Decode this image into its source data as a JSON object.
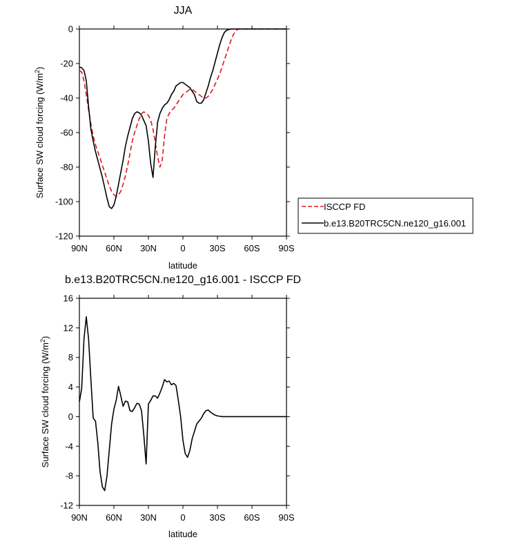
{
  "chart_data": [
    {
      "type": "line",
      "title": "JJA",
      "xlabel": "latitude",
      "ylabel": "Surface SW cloud forcing (W/m",
      "ylabel_sup": "2",
      "ylabel_end": ")",
      "xlim": [
        90,
        -90
      ],
      "ylim": [
        -120,
        0
      ],
      "xticks": [
        90,
        60,
        30,
        0,
        -30,
        -60,
        -90
      ],
      "xtick_labels": [
        "90N",
        "60N",
        "30N",
        "0",
        "30S",
        "60S",
        "90S"
      ],
      "yticks": [
        0,
        -20,
        -40,
        -60,
        -80,
        -100,
        -120
      ],
      "ytick_labels": [
        "0",
        "-20",
        "-40",
        "-60",
        "-80",
        "-100",
        "-120"
      ],
      "grid": false,
      "legend": "right",
      "series": [
        {
          "name": "ISCCP FD",
          "color": "#e0141e",
          "style": "dashed",
          "x": [
            90,
            88,
            86,
            84,
            82,
            80,
            78,
            76,
            74,
            72,
            70,
            68,
            66,
            64,
            62,
            60,
            58,
            56,
            54,
            52,
            50,
            48,
            46,
            44,
            42,
            40,
            38,
            36,
            34,
            32,
            30,
            28,
            26,
            24,
            22,
            20,
            18,
            16,
            14,
            12,
            10,
            8,
            6,
            4,
            2,
            0,
            -2,
            -4,
            -6,
            -8,
            -10,
            -12,
            -14,
            -16,
            -18,
            -20,
            -22,
            -24,
            -26,
            -28,
            -30,
            -32,
            -34,
            -36,
            -38,
            -40,
            -42,
            -44,
            -46,
            -48,
            -50,
            -52,
            -54,
            -56,
            -58,
            -60,
            -62,
            -64,
            -66,
            -68,
            -70,
            -72,
            -74,
            -76,
            -78,
            -80,
            -82,
            -84,
            -86,
            -88,
            -90
          ],
          "values": [
            -24,
            -25,
            -30,
            -38,
            -47,
            -55,
            -62,
            -67,
            -71,
            -75,
            -79,
            -83,
            -87,
            -91,
            -94,
            -96,
            -97,
            -96,
            -94,
            -90,
            -85,
            -79,
            -72,
            -65,
            -60,
            -56,
            -52,
            -49,
            -48,
            -49,
            -50,
            -53,
            -58,
            -66,
            -74,
            -80,
            -76,
            -62,
            -52,
            -49,
            -47,
            -46,
            -44,
            -42,
            -40,
            -38,
            -37,
            -36,
            -35,
            -35,
            -36,
            -37,
            -38,
            -39,
            -40,
            -40,
            -39,
            -37,
            -35,
            -32,
            -29,
            -26,
            -22,
            -18,
            -14,
            -10,
            -6,
            -3,
            -1,
            0,
            0,
            0,
            0,
            0,
            0,
            0,
            0,
            0,
            0,
            0,
            0,
            0,
            0,
            0,
            0,
            0,
            0,
            0,
            0,
            0,
            0
          ]
        },
        {
          "name": "b.e13.B20TRC5CN.ne120_g16.001",
          "color": "#000000",
          "style": "solid",
          "x": [
            90,
            88,
            86,
            84,
            82,
            80,
            78,
            76,
            74,
            72,
            70,
            68,
            66,
            64,
            62,
            60,
            58,
            56,
            54,
            52,
            50,
            48,
            46,
            44,
            42,
            40,
            38,
            36,
            34,
            32,
            30,
            28,
            26,
            24,
            22,
            20,
            18,
            16,
            14,
            12,
            10,
            8,
            6,
            4,
            2,
            0,
            -2,
            -4,
            -6,
            -8,
            -10,
            -12,
            -14,
            -16,
            -18,
            -20,
            -22,
            -24,
            -26,
            -28,
            -30,
            -32,
            -34,
            -36,
            -38,
            -40,
            -42,
            -44,
            -46,
            -48,
            -50,
            -52,
            -54,
            -56,
            -58,
            -60,
            -62,
            -64,
            -66,
            -68,
            -70,
            -72,
            -74,
            -76,
            -78,
            -80,
            -82,
            -84,
            -86,
            -88,
            -90
          ],
          "values": [
            -22,
            -22.5,
            -24,
            -30,
            -45,
            -58,
            -65,
            -71,
            -76,
            -81,
            -86,
            -92,
            -98,
            -103,
            -104,
            -102,
            -97,
            -90,
            -83,
            -76,
            -68,
            -62,
            -57,
            -52,
            -49,
            -48,
            -48.5,
            -50,
            -53,
            -56,
            -65,
            -78,
            -86,
            -68,
            -54,
            -49,
            -46,
            -44,
            -43,
            -41,
            -38,
            -36,
            -33,
            -32,
            -31,
            -31,
            -32,
            -33,
            -34,
            -36,
            -38,
            -42,
            -43,
            -43,
            -41,
            -37,
            -33,
            -28,
            -24,
            -19,
            -14,
            -9,
            -5,
            -2,
            -0.7,
            -0.3,
            0,
            0,
            0,
            0,
            0,
            0,
            0,
            0,
            0,
            0,
            0,
            0,
            0,
            0,
            0,
            0,
            0,
            0,
            0,
            0,
            0,
            0,
            0,
            0,
            0
          ]
        }
      ]
    },
    {
      "type": "line",
      "title": "b.e13.B20TRC5CN.ne120_g16.001 - ISCCP FD",
      "xlabel": "latitude",
      "ylabel": "Surface SW cloud forcing (W/m",
      "ylabel_sup": "2",
      "ylabel_end": ")",
      "xlim": [
        90,
        -90
      ],
      "ylim": [
        -12,
        16
      ],
      "xticks": [
        90,
        60,
        30,
        0,
        -30,
        -60,
        -90
      ],
      "xtick_labels": [
        "90N",
        "60N",
        "30N",
        "0",
        "30S",
        "60S",
        "90S"
      ],
      "yticks": [
        16,
        12,
        8,
        4,
        0,
        -4,
        -8,
        -12
      ],
      "ytick_labels": [
        "16",
        "12",
        "8",
        "4",
        "0",
        "-4",
        "-8",
        "-12"
      ],
      "grid": false,
      "series": [
        {
          "color": "#000000",
          "style": "solid",
          "x": [
            90,
            88,
            86,
            84,
            82,
            80,
            78,
            76,
            74,
            72,
            70,
            68,
            66,
            64,
            62,
            60,
            58,
            56,
            54,
            52,
            50,
            48,
            46,
            44,
            42,
            40,
            38,
            36,
            34,
            32,
            30,
            28,
            26,
            24,
            22,
            20,
            18,
            16,
            14,
            12,
            10,
            8,
            6,
            4,
            2,
            0,
            -2,
            -4,
            -6,
            -8,
            -10,
            -12,
            -14,
            -16,
            -18,
            -20,
            -22,
            -24,
            -26,
            -28,
            -30,
            -32,
            -34,
            -36,
            -38,
            -40,
            -42,
            -44,
            -46,
            -48,
            -50,
            -52,
            -54,
            -56,
            -58,
            -60,
            -62,
            -64,
            -66,
            -68,
            -70,
            -72,
            -74,
            -76,
            -78,
            -80,
            -82,
            -84,
            -86,
            -88,
            -90
          ],
          "values": [
            2,
            3.8,
            10.5,
            13.5,
            10.5,
            5,
            -0.2,
            -0.6,
            -3.5,
            -7.5,
            -9.5,
            -10,
            -8,
            -4.5,
            -1,
            1,
            2.2,
            4.1,
            2.8,
            1.4,
            2.1,
            2,
            0.8,
            0.7,
            1.2,
            1.8,
            1.7,
            0.8,
            -2.5,
            -6.4,
            1.7,
            2.2,
            2.8,
            2.8,
            2.5,
            3.2,
            4,
            5,
            4.7,
            4.8,
            4.3,
            4.5,
            4.2,
            2.2,
            0,
            -3.2,
            -5,
            -5.5,
            -4.6,
            -3,
            -2,
            -1,
            -0.6,
            -0.2,
            0.4,
            0.8,
            0.9,
            0.6,
            0.4,
            0.2,
            0.1,
            0.05,
            0,
            0,
            0,
            0,
            0,
            0,
            0,
            0,
            0,
            0,
            0,
            0,
            0,
            0,
            0,
            0,
            0,
            0,
            0,
            0,
            0,
            0,
            0,
            0,
            0,
            0,
            0,
            0,
            0
          ]
        }
      ]
    }
  ]
}
